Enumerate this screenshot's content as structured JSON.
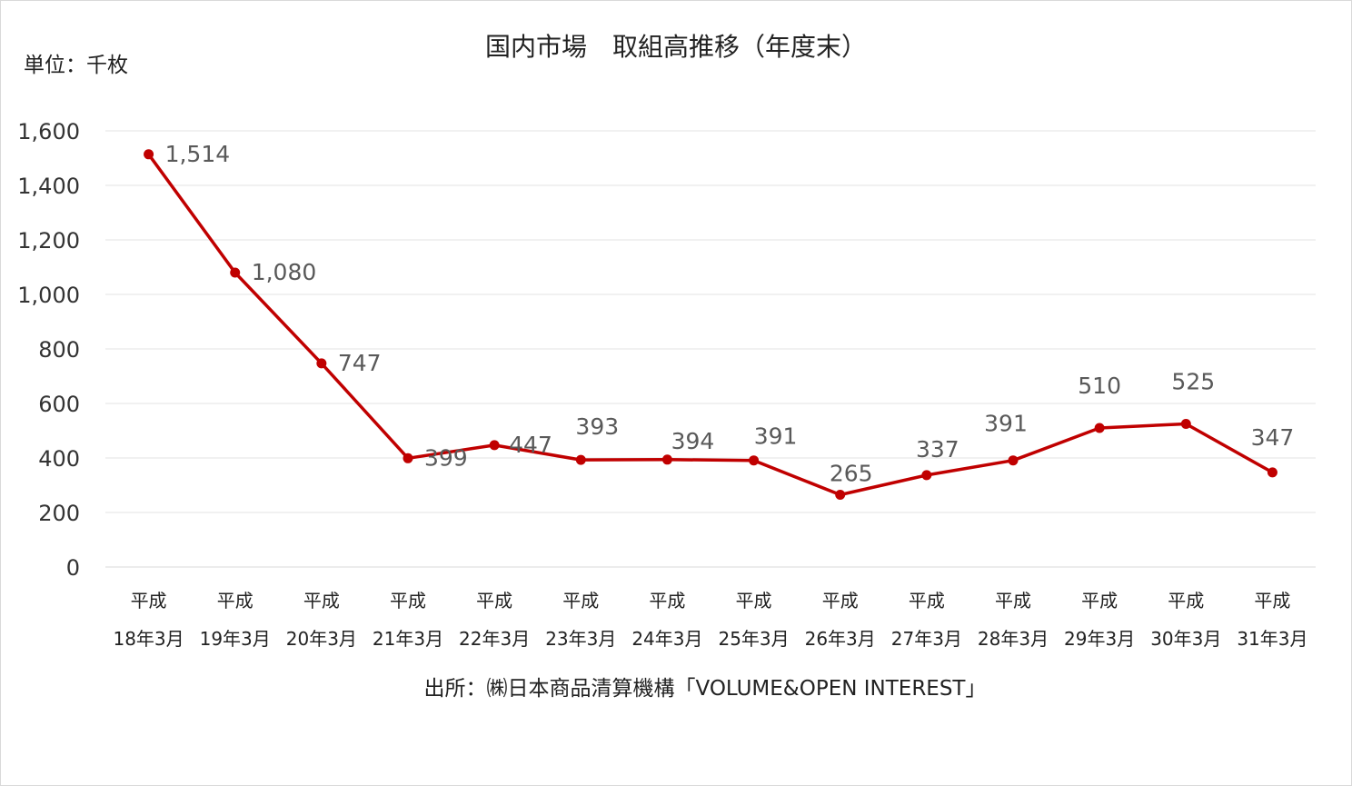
{
  "chart_data": {
    "type": "line",
    "title": "国内市場　取組高推移（年度末）",
    "unit_label": "単位：千枚",
    "source": "出所：㈱日本商品清算機構「VOLUME&OPEN INTEREST」",
    "categories": [
      [
        "平成",
        "18年3月"
      ],
      [
        "平成",
        "19年3月"
      ],
      [
        "平成",
        "20年3月"
      ],
      [
        "平成",
        "21年3月"
      ],
      [
        "平成",
        "22年3月"
      ],
      [
        "平成",
        "23年3月"
      ],
      [
        "平成",
        "24年3月"
      ],
      [
        "平成",
        "25年3月"
      ],
      [
        "平成",
        "26年3月"
      ],
      [
        "平成",
        "27年3月"
      ],
      [
        "平成",
        "28年3月"
      ],
      [
        "平成",
        "29年3月"
      ],
      [
        "平成",
        "30年3月"
      ],
      [
        "平成",
        "31年3月"
      ]
    ],
    "series": [
      {
        "values": [
          1514,
          1080,
          747,
          399,
          447,
          393,
          394,
          391,
          265,
          337,
          391,
          510,
          525,
          347
        ],
        "data_labels": [
          "1,514",
          "1,080",
          "747",
          "399",
          "447",
          "393",
          "394",
          "391",
          "265",
          "337",
          "391",
          "510",
          "525",
          "347"
        ],
        "color": "#c00000"
      }
    ],
    "ylim": [
      0,
      1600
    ],
    "yticks": [
      0,
      200,
      400,
      600,
      800,
      1000,
      1200,
      1400,
      1600
    ],
    "ytick_labels": [
      "0",
      "200",
      "400",
      "600",
      "800",
      "1,000",
      "1,200",
      "1,400",
      "1,600"
    ],
    "grid": true,
    "legend": "none"
  }
}
